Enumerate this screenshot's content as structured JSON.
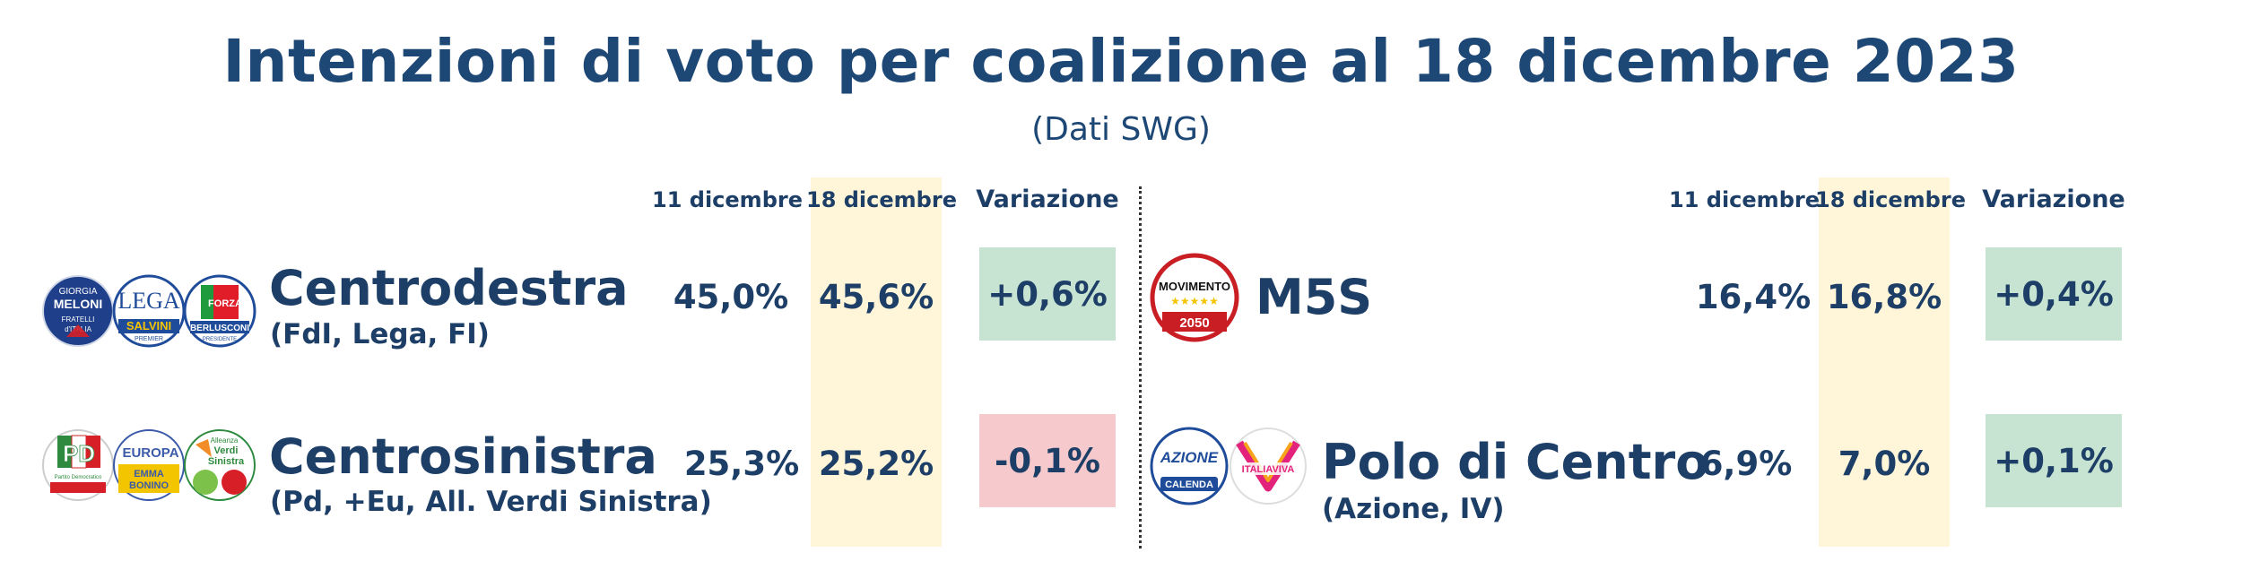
{
  "title": "Intenzioni di voto per coalizione al 18 dicembre 2023",
  "subtitle": "(Dati SWG)",
  "columns": {
    "prev": "11 dicembre",
    "curr": "18 dicembre",
    "change": "Variazione"
  },
  "colors": {
    "band": "#fff6d9",
    "positive": "#c7e3d1",
    "negative": "#f6c9cc",
    "text": "#1d3e66"
  },
  "left": [
    {
      "name": "Centrodestra",
      "parties": "(FdI, Lega, FI)",
      "prev": "45,0%",
      "curr": "45,6%",
      "change": "+0,6%",
      "trend": "positive",
      "logos": [
        {
          "icon": "fdi-logo",
          "texts": [
            "GIORGIA",
            "MELONI",
            "FRATELLI",
            "d'ITALIA"
          ]
        },
        {
          "icon": "lega-logo",
          "texts": [
            "LEGA",
            "SALVINI",
            "PREMIER"
          ]
        },
        {
          "icon": "forza-italia-logo",
          "texts": [
            "BERLUSCONI",
            "PRESIDENTE"
          ]
        }
      ]
    },
    {
      "name": "Centrosinistra",
      "parties": "(Pd, +Eu, All. Verdi Sinistra)",
      "prev": "25,3%",
      "curr": "25,2%",
      "change": "-0,1%",
      "trend": "negative",
      "logos": [
        {
          "icon": "pd-logo",
          "texts": [
            "PD",
            "Partito Democratico"
          ]
        },
        {
          "icon": "piu-europa-logo",
          "texts": [
            "EUROPA",
            "EMMA",
            "BONINO"
          ]
        },
        {
          "icon": "avs-logo",
          "texts": [
            "Alleanza",
            "Verdi",
            "Sinistra"
          ]
        }
      ]
    }
  ],
  "right": [
    {
      "name": "M5S",
      "parties": "",
      "prev": "16,4%",
      "curr": "16,8%",
      "change": "+0,4%",
      "trend": "positive",
      "logos": [
        {
          "icon": "m5s-logo",
          "texts": [
            "MOVIMENTO",
            "2050"
          ]
        }
      ]
    },
    {
      "name": "Polo di Centro",
      "parties": "(Azione, IV)",
      "prev": "6,9%",
      "curr": "7,0%",
      "change": "+0,1%",
      "trend": "positive",
      "logos": [
        {
          "icon": "azione-logo",
          "texts": [
            "AZIONE",
            "CALENDA"
          ]
        },
        {
          "icon": "italia-viva-logo",
          "texts": [
            "ITALIAVIVA"
          ]
        }
      ]
    }
  ]
}
